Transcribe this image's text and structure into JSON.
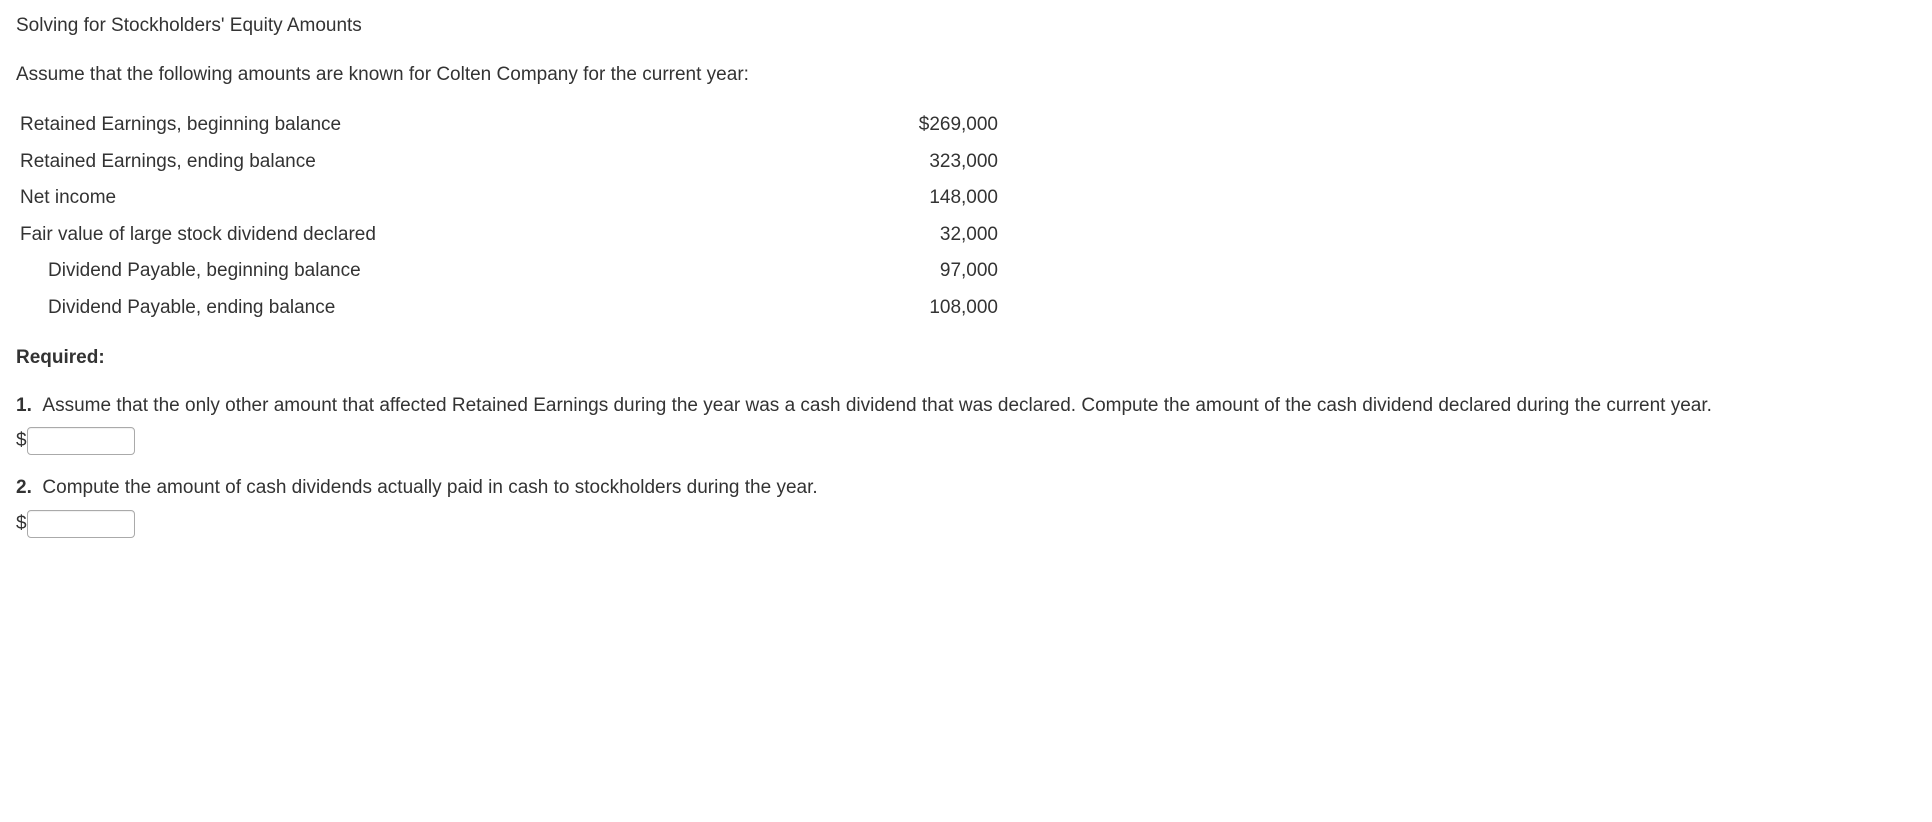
{
  "title": "Solving for Stockholders' Equity Amounts",
  "intro": "Assume that the following amounts are known for Colten Company for the current year:",
  "table": {
    "rows": [
      {
        "label": "Retained Earnings, beginning balance",
        "value": "$269,000",
        "indent": false
      },
      {
        "label": "Retained Earnings, ending balance",
        "value": "323,000",
        "indent": false
      },
      {
        "label": "Net income",
        "value": "148,000",
        "indent": false
      },
      {
        "label": "Fair value of large stock dividend declared",
        "value": "32,000",
        "indent": false
      },
      {
        "label": "Dividend Payable, beginning balance",
        "value": "97,000",
        "indent": true
      },
      {
        "label": "Dividend Payable, ending balance",
        "value": "108,000",
        "indent": true
      }
    ]
  },
  "required_label": "Required:",
  "questions": {
    "q1": {
      "number": "1.",
      "text": "Assume that the only other amount that affected Retained Earnings during the year was a cash dividend that was declared. Compute the amount of the cash dividend declared during the current year.",
      "currency_symbol": "$",
      "input_value": ""
    },
    "q2": {
      "number": "2.",
      "text": "Compute the amount of cash dividends actually paid in cash to stockholders during the year.",
      "currency_symbol": "$",
      "input_value": ""
    }
  },
  "colors": {
    "text": "#333333",
    "background": "#ffffff",
    "input_border": "#aaaaaa"
  },
  "typography": {
    "font_family": "Verdana, Geneva, sans-serif",
    "body_fontsize": 19,
    "title_fontsize": 19
  }
}
